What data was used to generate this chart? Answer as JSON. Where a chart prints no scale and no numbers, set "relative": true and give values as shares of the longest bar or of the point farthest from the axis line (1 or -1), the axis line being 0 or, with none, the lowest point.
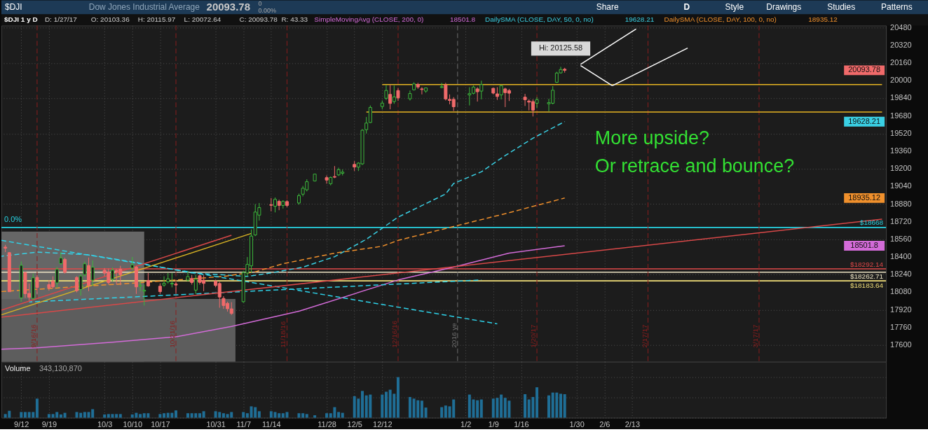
{
  "chart_data": [
    {
      "type": "candlestick",
      "title": "Dow Jones Industrial Average",
      "subtitle": "$DJI 1 y D",
      "annotations": [
        "$DJI",
        "20093.78",
        "0",
        "0.00%",
        "Share",
        "D",
        "Style",
        "Drawings",
        "Studies",
        "Patterns",
        "D: 1/27/17",
        "O: 20103.36",
        "H: 20115.97",
        "L: 20072.64",
        "C: 20093.78",
        "R: 43.33",
        "More upside?",
        "Or retrace and bounce?",
        "20093.78",
        "19628.21",
        "18935.12",
        "18501.8",
        {
          "text": "Hi: 20125.58",
          "x": "2017-01-26",
          "y": 20125.58
        },
        {
          "text": "0.0%",
          "x": "2016-09-07",
          "y": 18668
        }
      ],
      "x": [
        "2016-09-08",
        "2016-09-09",
        "2016-09-12",
        "2016-09-13",
        "2016-09-14",
        "2016-09-15",
        "2016-09-16",
        "2016-09-19",
        "2016-09-20",
        "2016-09-21",
        "2016-09-22",
        "2016-09-23",
        "2016-09-26",
        "2016-09-27",
        "2016-09-28",
        "2016-09-29",
        "2016-09-30",
        "2016-10-03",
        "2016-10-04",
        "2016-10-05",
        "2016-10-06",
        "2016-10-07",
        "2016-10-10",
        "2016-10-11",
        "2016-10-12",
        "2016-10-13",
        "2016-10-14",
        "2016-10-17",
        "2016-10-18",
        "2016-10-19",
        "2016-10-20",
        "2016-10-21",
        "2016-10-24",
        "2016-10-25",
        "2016-10-26",
        "2016-10-27",
        "2016-10-28",
        "2016-10-31",
        "2016-11-01",
        "2016-11-02",
        "2016-11-03",
        "2016-11-04",
        "2016-11-07",
        "2016-11-08",
        "2016-11-09",
        "2016-11-10",
        "2016-11-11",
        "2016-11-14",
        "2016-11-15",
        "2016-11-16",
        "2016-11-17",
        "2016-11-18",
        "2016-11-21",
        "2016-11-22",
        "2016-11-23",
        "2016-11-25",
        "2016-11-28",
        "2016-11-29",
        "2016-11-30",
        "2016-12-01",
        "2016-12-02",
        "2016-12-05",
        "2016-12-06",
        "2016-12-07",
        "2016-12-08",
        "2016-12-09",
        "2016-12-12",
        "2016-12-13",
        "2016-12-14",
        "2016-12-15",
        "2016-12-16",
        "2016-12-19",
        "2016-12-20",
        "2016-12-21",
        "2016-12-22",
        "2016-12-23",
        "2016-12-27",
        "2016-12-28",
        "2016-12-29",
        "2016-12-30",
        "2017-01-03",
        "2017-01-04",
        "2017-01-05",
        "2017-01-06",
        "2017-01-09",
        "2017-01-10",
        "2017-01-11",
        "2017-01-12",
        "2017-01-13",
        "2017-01-17",
        "2017-01-18",
        "2017-01-19",
        "2017-01-20",
        "2017-01-23",
        "2017-01-24",
        "2017-01-25",
        "2017-01-26",
        "2017-01-27"
      ],
      "ohlc": [
        [
          18490,
          18510,
          18445,
          18480
        ],
        [
          18440,
          18445,
          18085,
          18085
        ],
        [
          18030,
          18360,
          17995,
          18325
        ],
        [
          18260,
          18265,
          18030,
          18067
        ],
        [
          18070,
          18160,
          18005,
          18035
        ],
        [
          18025,
          18250,
          18010,
          18212
        ],
        [
          18215,
          18235,
          18065,
          18124
        ],
        [
          18150,
          18190,
          18095,
          18120
        ],
        [
          18180,
          18225,
          18115,
          18130
        ],
        [
          18165,
          18310,
          18120,
          18290
        ],
        [
          18340,
          18445,
          18330,
          18392
        ],
        [
          18378,
          18393,
          18250,
          18261
        ],
        [
          18215,
          18225,
          18080,
          18095
        ],
        [
          18105,
          18245,
          18050,
          18228
        ],
        [
          18240,
          18360,
          18225,
          18339
        ],
        [
          18323,
          18395,
          18090,
          18143
        ],
        [
          18190,
          18370,
          18140,
          18308
        ],
        [
          18280,
          18300,
          18225,
          18254
        ],
        [
          18265,
          18295,
          18150,
          18168
        ],
        [
          18200,
          18305,
          18180,
          18281
        ],
        [
          18280,
          18290,
          18150,
          18268
        ],
        [
          18290,
          18320,
          18145,
          18240
        ],
        [
          18300,
          18400,
          18280,
          18329
        ],
        [
          18308,
          18320,
          18065,
          18129
        ],
        [
          18135,
          18180,
          18090,
          18144
        ],
        [
          18090,
          18150,
          17960,
          18099
        ],
        [
          18188,
          18255,
          18130,
          18138
        ],
        [
          18135,
          18160,
          18065,
          18086
        ],
        [
          18145,
          18225,
          18130,
          18162
        ],
        [
          18175,
          18255,
          18160,
          18203
        ],
        [
          18155,
          18255,
          18125,
          18162
        ],
        [
          18155,
          18170,
          18065,
          18146
        ],
        [
          18190,
          18270,
          18180,
          18223
        ],
        [
          18205,
          18235,
          18150,
          18169
        ],
        [
          18100,
          18240,
          18065,
          18199
        ],
        [
          18230,
          18240,
          18150,
          18170
        ],
        [
          18190,
          18235,
          18090,
          18161
        ],
        [
          18180,
          18195,
          18125,
          18142
        ],
        [
          18160,
          18175,
          17940,
          18037
        ],
        [
          18025,
          18045,
          17930,
          17960
        ],
        [
          17980,
          17995,
          17905,
          17931
        ],
        [
          17930,
          17990,
          17875,
          17888
        ],
        [
          17995,
          18275,
          17985,
          18260
        ],
        [
          18255,
          18400,
          18225,
          18333
        ],
        [
          18320,
          18650,
          18255,
          18590
        ],
        [
          18600,
          18880,
          18590,
          18808
        ],
        [
          18780,
          18890,
          18730,
          18848
        ],
        [
          18875,
          18935,
          18815,
          18869
        ],
        [
          18860,
          18940,
          18805,
          18923
        ],
        [
          18905,
          18920,
          18825,
          18868
        ],
        [
          18868,
          18915,
          18840,
          18904
        ],
        [
          18903,
          18915,
          18850,
          18868
        ],
        [
          18890,
          18975,
          18875,
          18957
        ],
        [
          18970,
          19045,
          18950,
          19024
        ],
        [
          19010,
          19105,
          18995,
          19083
        ],
        [
          19090,
          19155,
          19085,
          19152
        ],
        [
          19120,
          19140,
          19065,
          19098
        ],
        [
          19065,
          19130,
          19050,
          19122
        ],
        [
          19130,
          19225,
          19115,
          19124
        ],
        [
          19145,
          19210,
          19135,
          19192
        ],
        [
          19160,
          19195,
          19140,
          19170
        ],
        [
          19240,
          19270,
          19180,
          19216
        ],
        [
          19215,
          19260,
          19180,
          19252
        ],
        [
          19245,
          19560,
          19235,
          19550
        ],
        [
          19555,
          19670,
          19520,
          19615
        ],
        [
          19620,
          19775,
          19615,
          19757
        ],
        [
          19765,
          19820,
          19740,
          19796
        ],
        [
          19840,
          19960,
          19825,
          19911
        ],
        [
          19875,
          19960,
          19740,
          19793
        ],
        [
          19810,
          19955,
          19790,
          19852
        ],
        [
          19910,
          19930,
          19815,
          19843
        ],
        [
          19835,
          19910,
          19820,
          19883
        ],
        [
          19917,
          19985,
          19910,
          19970
        ],
        [
          19965,
          19980,
          19925,
          19942
        ],
        [
          19925,
          19940,
          19875,
          19919
        ],
        [
          19905,
          19935,
          19890,
          19934
        ],
        [
          19938,
          19980,
          19930,
          19945
        ],
        [
          19960,
          19980,
          19820,
          19834
        ],
        [
          19830,
          19875,
          19785,
          19820
        ],
        [
          19830,
          19850,
          19725,
          19763
        ],
        [
          19870,
          19940,
          19775,
          19882
        ],
        [
          19885,
          19955,
          19875,
          19942
        ],
        [
          19925,
          19940,
          19810,
          19899
        ],
        [
          19905,
          19999,
          19830,
          19964
        ],
        [
          19930,
          19935,
          19875,
          19887
        ],
        [
          19880,
          19940,
          19825,
          19856
        ],
        [
          19870,
          19955,
          19830,
          19954
        ],
        [
          19925,
          19935,
          19760,
          19891
        ],
        [
          19910,
          19925,
          19815,
          19886
        ],
        [
          19850,
          19880,
          19770,
          19827
        ],
        [
          19815,
          19830,
          19730,
          19805
        ],
        [
          19810,
          19830,
          19675,
          19732
        ],
        [
          19795,
          19850,
          19750,
          19827
        ],
        [
          19790,
          19835,
          19720,
          19800
        ],
        [
          19795,
          19950,
          19785,
          19913
        ],
        [
          19985,
          20080,
          19980,
          20069
        ],
        [
          20070,
          20125.58,
          20065,
          20101
        ],
        [
          20103.36,
          20115.97,
          20072.64,
          20093.78
        ]
      ],
      "colors": [
        "#f06a6a",
        "#f06a6a",
        "#3cb93c",
        "#f06a6a",
        "#f06a6a",
        "#3cb93c",
        "#f06a6a",
        "#f06a6a",
        "#f06a6a",
        "#3cb93c",
        "#3cb93c",
        "#f06a6a",
        "#f06a6a",
        "#3cb93c",
        "#3cb93c",
        "#f06a6a",
        "#3cb93c",
        "#f06a6a",
        "#f06a6a",
        "#3cb93c",
        "#f06a6a",
        "#f06a6a",
        "#3cb93c",
        "#f06a6a",
        "#3cb93c",
        "#3cb93c",
        "#f06a6a",
        "#f06a6a",
        "#3cb93c",
        "#3cb93c",
        "#3cb93c",
        "#f06a6a",
        "#3cb93c",
        "#f06a6a",
        "#3cb93c",
        "#f06a6a",
        "#f06a6a",
        "#f06a6a",
        "#f06a6a",
        "#f06a6a",
        "#f06a6a",
        "#f06a6a",
        "#3cb93c",
        "#3cb93c",
        "#3cb93c",
        "#3cb93c",
        "#3cb93c",
        "#f06a6a",
        "#3cb93c",
        "#f06a6a",
        "#3cb93c",
        "#f06a6a",
        "#3cb93c",
        "#3cb93c",
        "#3cb93c",
        "#3cb93c",
        "#f06a6a",
        "#3cb93c",
        "#f06a6a",
        "#3cb93c",
        "#3cb93c",
        "#f06a6a",
        "#3cb93c",
        "#3cb93c",
        "#3cb93c",
        "#3cb93c",
        "#3cb93c",
        "#3cb93c",
        "#f06a6a",
        "#3cb93c",
        "#f06a6a",
        "#3cb93c",
        "#3cb93c",
        "#f06a6a",
        "#f06a6a",
        "#3cb93c",
        "#3cb93c",
        "#f06a6a",
        "#f06a6a",
        "#f06a6a",
        "#3cb93c",
        "#3cb93c",
        "#f06a6a",
        "#3cb93c",
        "#f06a6a",
        "#f06a6a",
        "#3cb93c",
        "#f06a6a",
        "#f06a6a",
        "#f06a6a",
        "#f06a6a",
        "#f06a6a",
        "#3cb93c",
        "#3cb93c",
        "#3cb93c",
        "#3cb93c",
        "#3cb93c",
        "#f06a6a"
      ],
      "series": [
        {
          "type": "area",
          "color": "#666666",
          "x": [
            "2016-09-07",
            "2016-10-13"
          ],
          "values": [
            18631,
            18631
          ]
        },
        {
          "type": "area",
          "color": "#5d5d5d",
          "x": [
            "2016-09-07",
            "2016-11-05"
          ],
          "values": [
            18020,
            18020
          ]
        },
        {
          "name": "SimpleMovingAvg (CLOSE, 200, 0)",
          "type": "line",
          "color": "#d36bd8",
          "x": [
            "2016-09-07",
            "2016-09-16",
            "2016-10-05",
            "2016-10-21",
            "2016-11-04",
            "2016-11-21",
            "2016-12-16",
            "2016-12-30",
            "2017-01-13",
            "2017-01-27"
          ],
          "values": [
            17564,
            17577,
            17627,
            17676,
            17770,
            17908,
            18192,
            18308,
            18435,
            18501.8
          ]
        },
        {
          "name": "DailySMA (CLOSE, DAY, 50, 0, no)",
          "type": "line",
          "line_style": "dashed",
          "color": "#3ad0e4",
          "x": [
            "2016-09-07",
            "2016-09-16",
            "2016-09-29",
            "2016-10-11",
            "2016-10-25",
            "2016-11-08",
            "2016-11-14",
            "2016-11-22",
            "2016-11-30",
            "2016-12-08",
            "2016-12-16",
            "2016-12-28",
            "2016-12-30",
            "2017-01-06",
            "2017-01-12",
            "2017-01-19",
            "2017-01-27"
          ],
          "values": [
            18407,
            18445,
            18420,
            18350,
            18256,
            18224,
            18256,
            18308,
            18403,
            18561,
            18762,
            18972,
            19067,
            19173,
            19320,
            19478,
            19628.21
          ]
        },
        {
          "name": "DailySMA (CLOSE, DAY, 100, 0, no)",
          "type": "line",
          "line_style": "dashed",
          "color": "#f0902c",
          "x": [
            "2016-09-07",
            "2016-10-11",
            "2016-11-02",
            "2016-11-10",
            "2016-11-17",
            "2016-11-30",
            "2016-12-12",
            "2016-12-16",
            "2016-12-30",
            "2017-01-12",
            "2017-01-27"
          ],
          "values": [
            18087,
            18165,
            18224,
            18266,
            18339,
            18435,
            18498,
            18551,
            18677,
            18793,
            18935.12
          ]
        },
        {
          "type": "line",
          "line_style": "dashed",
          "color": "#2ed3ea",
          "x": [
            "2016-09-07",
            "2017-01-10"
          ],
          "values": [
            18551,
            17794
          ]
        },
        {
          "type": "line",
          "line_style": "dashed",
          "color": "#2ed3ea",
          "x": [
            "2016-09-14",
            "2017-01-06"
          ],
          "values": [
            17992,
            18192
          ]
        },
        {
          "type": "line",
          "color": "#d84848",
          "x": [
            "2016-09-07",
            "2017-04-17"
          ],
          "values": [
            17855,
            18743
          ]
        },
        {
          "type": "line",
          "color": "#d84848",
          "x": [
            "2016-09-07",
            "2016-11-04"
          ],
          "values": [
            17918,
            18597
          ]
        },
        {
          "type": "line",
          "color": "#d8b324",
          "x": [
            "2016-09-07",
            "2016-11-09"
          ],
          "values": [
            17876,
            18614
          ]
        },
        {
          "type": "line",
          "color": "#e6b422",
          "x": [
            "2016-12-12",
            "2017-04-17"
          ],
          "values": [
            19965,
            19965
          ]
        },
        {
          "type": "line",
          "color": "#e6b422",
          "x": [
            "2016-12-08",
            "2017-04-17"
          ],
          "values": [
            19715,
            19715
          ]
        },
        {
          "type": "line",
          "color": "#ffffff",
          "x": [
            "2017-01-31",
            "2017-02-14"
          ],
          "values": [
            20147,
            20469
          ]
        },
        {
          "type": "line",
          "color": "#ffffff",
          "x": [
            "2017-01-31",
            "2017-02-08"
          ],
          "values": [
            20137,
            19954
          ]
        },
        {
          "type": "line",
          "color": "#ffffff",
          "x": [
            "2017-02-08",
            "2017-02-27"
          ],
          "values": [
            19954,
            20295
          ]
        }
      ],
      "xlim": [
        "2016-09-07",
        "2017-04-18"
      ],
      "xticks": [
        {
          "value": "2016-09-12",
          "label": null
        },
        {
          "value": "2016-09-19",
          "label": null
        },
        {
          "value": "2016-10-03",
          "label": null
        },
        {
          "value": "2016-10-10",
          "label": null
        },
        {
          "value": "2016-10-17",
          "label": null
        },
        {
          "value": "2016-10-31",
          "label": null
        },
        {
          "value": "2016-11-07",
          "label": null
        },
        {
          "value": "2016-11-14",
          "label": null
        },
        {
          "value": "2016-11-28",
          "label": null
        },
        {
          "value": "2016-12-05",
          "label": null
        },
        {
          "value": "2016-12-12",
          "label": null
        },
        {
          "value": "2017-01-02",
          "label": null
        },
        {
          "value": "2017-01-09",
          "label": null
        },
        {
          "value": "2017-01-16",
          "label": null
        },
        {
          "value": "2017-01-30",
          "label": null
        },
        {
          "value": "2017-02-06",
          "label": null
        },
        {
          "value": "2017-02-13",
          "label": null
        }
      ],
      "ylim": [
        17450,
        20500
      ],
      "yticks": [
        17600,
        17760,
        17920,
        18080,
        18240,
        18400,
        18560,
        18720,
        18880,
        19040,
        19200,
        19360,
        19520,
        19680,
        19840,
        20000,
        20160,
        20320,
        20480
      ],
      "ref_lines": [
        {
          "axis": "y",
          "value": 18668,
          "label": "$18668",
          "color": "#27d3e3"
        },
        {
          "axis": "y",
          "value": 18292.14,
          "label": "$18292.14",
          "color": "#e04848"
        },
        {
          "axis": "y",
          "value": 18262.71,
          "label": "$18262.71",
          "color": "#efe6c6"
        },
        {
          "axis": "y",
          "value": 18183.64,
          "label": "$18183.64",
          "color": "#f2df78"
        },
        {
          "axis": "x",
          "value": "2016-09-16",
          "label": "9/16/16",
          "color": "#8c1d1d",
          "line_style": "dashed"
        },
        {
          "axis": "x",
          "value": "2016-10-21",
          "label": "10/21/16",
          "color": "#8c1d1d",
          "line_style": "dashed"
        },
        {
          "axis": "x",
          "value": "2016-11-18",
          "label": "11/18/16",
          "color": "#8c1d1d",
          "line_style": "dashed"
        },
        {
          "axis": "x",
          "value": "2016-12-16",
          "label": "12/16/16",
          "color": "#8c1d1d",
          "line_style": "dashed"
        },
        {
          "axis": "x",
          "value": "2016-12-31",
          "label": "2016 ye",
          "color": "#6e6e6e",
          "line_style": "dashed"
        },
        {
          "axis": "x",
          "value": "2017-01-20",
          "label": "1/20/17",
          "color": "#8c1d1d",
          "line_style": "dashed"
        },
        {
          "axis": "x",
          "value": "2017-02-17",
          "label": "2/17/17",
          "color": "#8c1d1d",
          "line_style": "dashed"
        },
        {
          "axis": "x",
          "value": "2017-03-17",
          "label": "3/17/17",
          "color": "#8c1d1d",
          "line_style": "dashed"
        }
      ],
      "grid": true,
      "tick_labels": "y"
    },
    {
      "type": "bar",
      "title": "Volume",
      "annotations": [
        "343,130,870"
      ],
      "x": [
        "2016-09-08",
        "2016-09-09",
        "2016-09-12",
        "2016-09-13",
        "2016-09-14",
        "2016-09-15",
        "2016-09-16",
        "2016-09-19",
        "2016-09-20",
        "2016-09-21",
        "2016-09-22",
        "2016-09-23",
        "2016-09-26",
        "2016-09-27",
        "2016-09-28",
        "2016-09-29",
        "2016-09-30",
        "2016-10-03",
        "2016-10-04",
        "2016-10-05",
        "2016-10-06",
        "2016-10-07",
        "2016-10-10",
        "2016-10-11",
        "2016-10-12",
        "2016-10-13",
        "2016-10-14",
        "2016-10-17",
        "2016-10-18",
        "2016-10-19",
        "2016-10-20",
        "2016-10-21",
        "2016-10-24",
        "2016-10-25",
        "2016-10-26",
        "2016-10-27",
        "2016-10-28",
        "2016-10-31",
        "2016-11-01",
        "2016-11-02",
        "2016-11-03",
        "2016-11-04",
        "2016-11-07",
        "2016-11-08",
        "2016-11-09",
        "2016-11-10",
        "2016-11-11",
        "2016-11-14",
        "2016-11-15",
        "2016-11-16",
        "2016-11-17",
        "2016-11-18",
        "2016-11-21",
        "2016-11-22",
        "2016-11-23",
        "2016-11-25",
        "2016-11-28",
        "2016-11-29",
        "2016-11-30",
        "2016-12-01",
        "2016-12-02",
        "2016-12-05",
        "2016-12-06",
        "2016-12-07",
        "2016-12-08",
        "2016-12-09",
        "2016-12-12",
        "2016-12-13",
        "2016-12-14",
        "2016-12-15",
        "2016-12-16",
        "2016-12-19",
        "2016-12-20",
        "2016-12-21",
        "2016-12-22",
        "2016-12-23",
        "2016-12-27",
        "2016-12-28",
        "2016-12-29",
        "2016-12-30",
        "2017-01-03",
        "2017-01-04",
        "2017-01-05",
        "2017-01-06",
        "2017-01-09",
        "2017-01-10",
        "2017-01-11",
        "2017-01-12",
        "2017-01-13",
        "2017-01-17",
        "2017-01-18",
        "2017-01-19",
        "2017-01-20",
        "2017-01-23",
        "2017-01-24",
        "2017-01-25",
        "2017-01-26",
        "2017-01-27"
      ],
      "values": [
        0.09,
        0.17,
        0.14,
        0.14,
        0.14,
        0.14,
        0.47,
        0.09,
        0.09,
        0.14,
        0.08,
        0.12,
        0.14,
        0.12,
        0.14,
        0.14,
        0.21,
        0.08,
        0.09,
        0.09,
        0.09,
        0.09,
        0.08,
        0.12,
        0.09,
        0.11,
        0.11,
        0.09,
        0.11,
        0.12,
        0.12,
        0.18,
        0.11,
        0.11,
        0.11,
        0.11,
        0.16,
        0.16,
        0.14,
        0.11,
        0.09,
        0.14,
        0.14,
        0.11,
        0.28,
        0.26,
        0.16,
        0.16,
        0.14,
        0.11,
        0.11,
        0.14,
        0.11,
        0.11,
        0.09,
        0.06,
        0.11,
        0.11,
        0.26,
        0.14,
        0.12,
        0.53,
        0.47,
        0.66,
        0.55,
        0.57,
        0.57,
        0.64,
        0.69,
        0.59,
        1,
        0.51,
        0.47,
        0.43,
        0.42,
        0.25,
        0.26,
        0.3,
        0.28,
        0.45,
        0.57,
        0.45,
        0.43,
        0.45,
        0.47,
        0.49,
        0.57,
        0.49,
        0.42,
        0.58,
        0.45,
        0.51,
        0.75,
        0.55,
        0.62,
        0.62,
        0.59,
        0.58
      ],
      "color": "#1f6e96",
      "relative": true,
      "xlim": [
        "2016-09-07",
        "2017-04-18"
      ],
      "xticks": [
        {
          "value": "2016-09-12",
          "label": "9/12"
        },
        {
          "value": "2016-09-19",
          "label": "9/19"
        },
        {
          "value": "2016-10-03",
          "label": "10/3"
        },
        {
          "value": "2016-10-10",
          "label": "10/10"
        },
        {
          "value": "2016-10-17",
          "label": "10/17"
        },
        {
          "value": "2016-10-31",
          "label": "10/31"
        },
        {
          "value": "2016-11-07",
          "label": "11/7"
        },
        {
          "value": "2016-11-14",
          "label": "11/14"
        },
        {
          "value": "2016-11-28",
          "label": "11/28"
        },
        {
          "value": "2016-12-05",
          "label": "12/5"
        },
        {
          "value": "2016-12-12",
          "label": "12/12"
        },
        {
          "value": "2017-01-02",
          "label": "1/2"
        },
        {
          "value": "2017-01-09",
          "label": "1/9"
        },
        {
          "value": "2017-01-16",
          "label": "1/16"
        },
        {
          "value": "2017-01-30",
          "label": "1/30"
        },
        {
          "value": "2017-02-06",
          "label": "2/6"
        },
        {
          "value": "2017-02-13",
          "label": "2/13"
        }
      ],
      "grid": true,
      "tick_labels": "x"
    }
  ]
}
